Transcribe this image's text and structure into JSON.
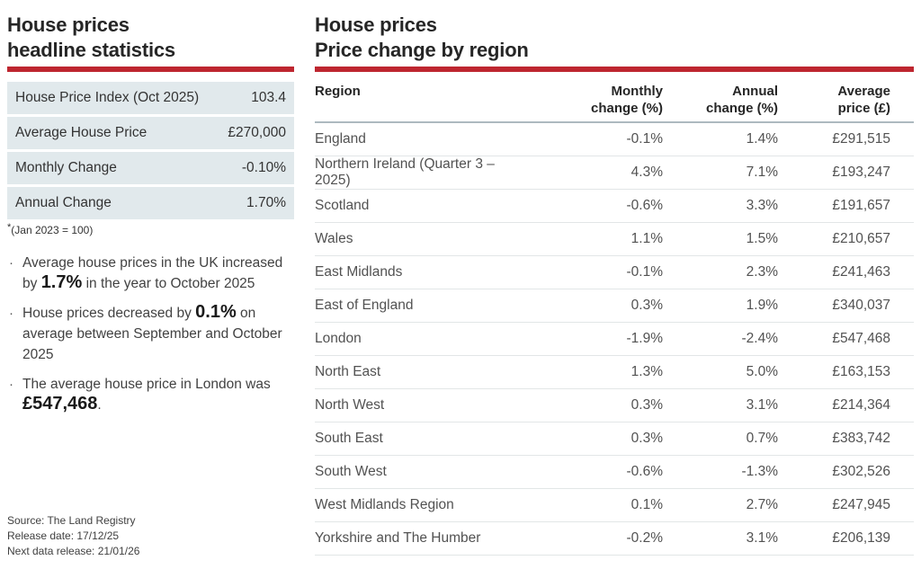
{
  "colors": {
    "accent_red": "#BE2630",
    "stat_row_bg": "#E1E9EC"
  },
  "left": {
    "title_line1": "House prices",
    "title_line2": "headline statistics",
    "stats": [
      {
        "label": "House Price Index (Oct 2025)",
        "value": "103.4"
      },
      {
        "label": "Average House Price",
        "value": "£270,000"
      },
      {
        "label": "Monthly Change",
        "value": "-0.10%"
      },
      {
        "label": "Annual Change",
        "value": "1.70%"
      }
    ],
    "footnote_marker": "*",
    "footnote_text": "(Jan 2023 = 100)",
    "bullet_marker": "·",
    "bullets": [
      {
        "pre": "Average house prices in the UK increased by ",
        "strong": "1.7%",
        "post": " in the year to October 2025"
      },
      {
        "pre": "House prices decreased by ",
        "strong": "0.1%",
        "post": " on average between September and October 2025"
      },
      {
        "pre": "The average house price in London was ",
        "strong": "£547,468",
        "post": "."
      }
    ],
    "source_lines": [
      "Source: The Land Registry",
      "Release date: 17/12/25",
      "Next data release: 21/01/26"
    ]
  },
  "right": {
    "title_line1": "House prices",
    "title_line2": "Price change by region",
    "table": {
      "header_region": "Region",
      "header_monthly_l1": "Monthly",
      "header_monthly_l2": "change (%)",
      "header_annual_l1": "Annual",
      "header_annual_l2": "change (%)",
      "header_average_l1": "Average",
      "header_average_l2": "price (£)",
      "rows": [
        {
          "region": "England",
          "monthly": "-0.1%",
          "annual": "1.4%",
          "average": "£291,515"
        },
        {
          "region": "Northern Ireland (Quarter 3 – 2025)",
          "monthly": "4.3%",
          "annual": "7.1%",
          "average": "£193,247"
        },
        {
          "region": "Scotland",
          "monthly": "-0.6%",
          "annual": "3.3%",
          "average": "£191,657"
        },
        {
          "region": "Wales",
          "monthly": "1.1%",
          "annual": "1.5%",
          "average": "£210,657"
        },
        {
          "region": "East Midlands",
          "monthly": "-0.1%",
          "annual": "2.3%",
          "average": "£241,463"
        },
        {
          "region": "East of England",
          "monthly": "0.3%",
          "annual": "1.9%",
          "average": "£340,037"
        },
        {
          "region": "London",
          "monthly": "-1.9%",
          "annual": "-2.4%",
          "average": "£547,468"
        },
        {
          "region": "North East",
          "monthly": "1.3%",
          "annual": "5.0%",
          "average": "£163,153"
        },
        {
          "region": "North West",
          "monthly": "0.3%",
          "annual": "3.1%",
          "average": "£214,364"
        },
        {
          "region": "South East",
          "monthly": "0.3%",
          "annual": "0.7%",
          "average": "£383,742"
        },
        {
          "region": "South West",
          "monthly": "-0.6%",
          "annual": "-1.3%",
          "average": "£302,526"
        },
        {
          "region": "West Midlands Region",
          "monthly": "0.1%",
          "annual": "2.7%",
          "average": "£247,945"
        },
        {
          "region": "Yorkshire and The Humber",
          "monthly": "-0.2%",
          "annual": "3.1%",
          "average": "£206,139"
        }
      ]
    }
  }
}
